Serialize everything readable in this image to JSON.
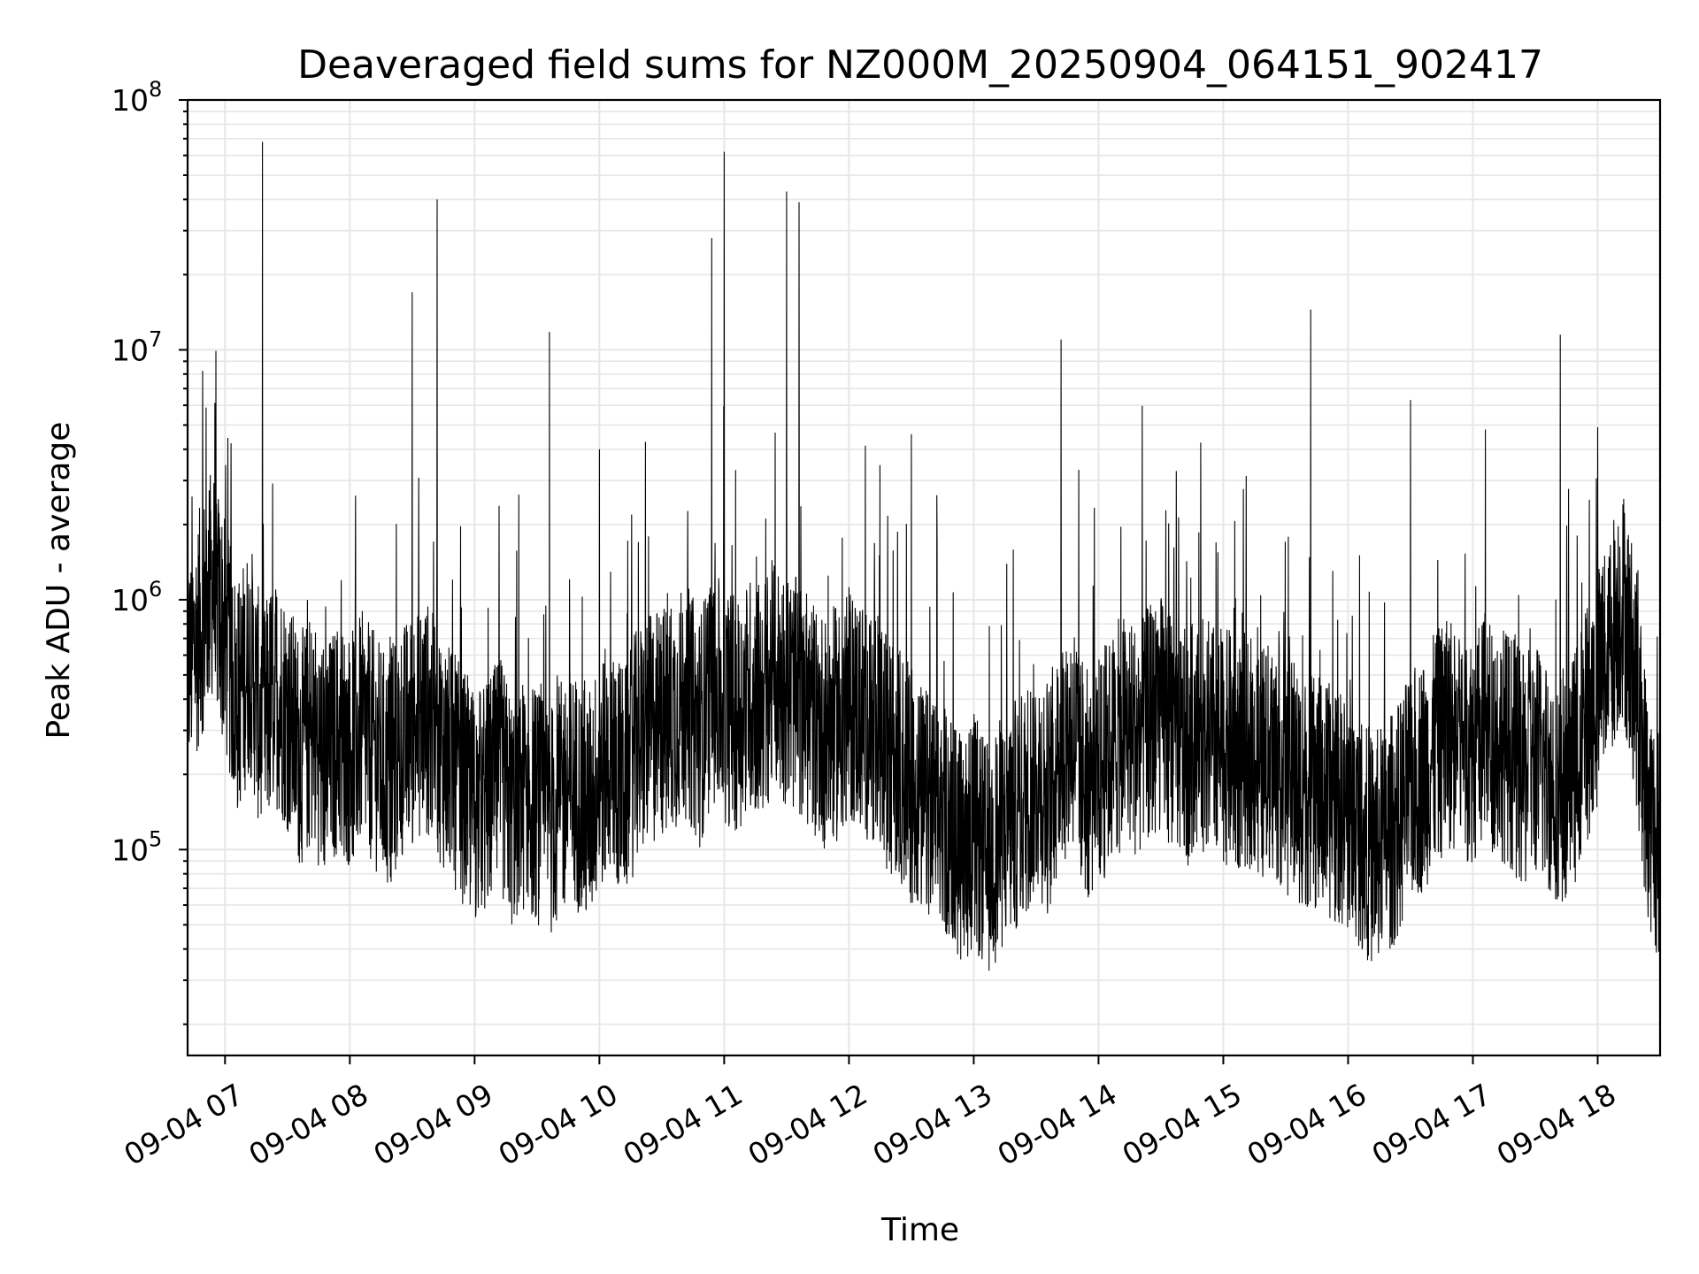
{
  "chart_data": {
    "type": "line",
    "title": "Deaveraged field sums for NZ000M_20250904_064151_902417",
    "xlabel": "Time",
    "ylabel": "Peak ADU - average",
    "y_scale": "log",
    "ylim": [
      15000,
      100000000
    ],
    "xlim": [
      "09-04 06:42",
      "09-04 18:30"
    ],
    "grid": true,
    "line_color": "#000000",
    "grid_color": "#e6e6e6",
    "x_ticks": [
      "09-04 07",
      "09-04 08",
      "09-04 09",
      "09-04 10",
      "09-04 11",
      "09-04 12",
      "09-04 13",
      "09-04 14",
      "09-04 15",
      "09-04 16",
      "09-04 17",
      "09-04 18"
    ],
    "y_ticks": [
      {
        "value": 100000,
        "base": "10",
        "exp": "5"
      },
      {
        "value": 1000000,
        "base": "10",
        "exp": "6"
      },
      {
        "value": 10000000,
        "base": "10",
        "exp": "7"
      },
      {
        "value": 100000000,
        "base": "10",
        "exp": "8"
      }
    ],
    "series": [
      {
        "x": [
          "09-04 06:42",
          "09-04 06:48",
          "09-04 06:54",
          "09-04 07:00",
          "09-04 07:06",
          "09-04 07:12",
          "09-04 07:18",
          "09-04 07:24",
          "09-04 07:30",
          "09-04 07:36",
          "09-04 07:42",
          "09-04 07:48",
          "09-04 07:54",
          "09-04 08:00",
          "09-04 08:06",
          "09-04 08:12",
          "09-04 08:18",
          "09-04 08:24",
          "09-04 08:30",
          "09-04 08:36",
          "09-04 08:42",
          "09-04 08:48",
          "09-04 08:54",
          "09-04 09:00",
          "09-04 09:06",
          "09-04 09:12",
          "09-04 09:18",
          "09-04 09:24",
          "09-04 09:30",
          "09-04 09:36",
          "09-04 09:42",
          "09-04 09:48",
          "09-04 09:54",
          "09-04 10:00",
          "09-04 10:06",
          "09-04 10:12",
          "09-04 10:18",
          "09-04 10:24",
          "09-04 10:30",
          "09-04 10:36",
          "09-04 10:42",
          "09-04 10:48",
          "09-04 10:54",
          "09-04 11:00",
          "09-04 11:06",
          "09-04 11:12",
          "09-04 11:18",
          "09-04 11:24",
          "09-04 11:30",
          "09-04 11:36",
          "09-04 11:42",
          "09-04 11:48",
          "09-04 11:54",
          "09-04 12:00",
          "09-04 12:06",
          "09-04 12:12",
          "09-04 12:18",
          "09-04 12:24",
          "09-04 12:30",
          "09-04 12:36",
          "09-04 12:42",
          "09-04 12:48",
          "09-04 12:54",
          "09-04 13:00",
          "09-04 13:06",
          "09-04 13:12",
          "09-04 13:18",
          "09-04 13:24",
          "09-04 13:30",
          "09-04 13:36",
          "09-04 13:42",
          "09-04 13:48",
          "09-04 13:54",
          "09-04 14:00",
          "09-04 14:06",
          "09-04 14:12",
          "09-04 14:18",
          "09-04 14:24",
          "09-04 14:30",
          "09-04 14:36",
          "09-04 14:42",
          "09-04 14:48",
          "09-04 14:54",
          "09-04 15:00",
          "09-04 15:06",
          "09-04 15:12",
          "09-04 15:18",
          "09-04 15:24",
          "09-04 15:30",
          "09-04 15:36",
          "09-04 15:42",
          "09-04 15:48",
          "09-04 15:54",
          "09-04 16:00",
          "09-04 16:06",
          "09-04 16:12",
          "09-04 16:18",
          "09-04 16:24",
          "09-04 16:30",
          "09-04 16:36",
          "09-04 16:42",
          "09-04 16:48",
          "09-04 16:54",
          "09-04 17:00",
          "09-04 17:06",
          "09-04 17:12",
          "09-04 17:18",
          "09-04 17:24",
          "09-04 17:30",
          "09-04 17:36",
          "09-04 17:42",
          "09-04 17:48",
          "09-04 17:54",
          "09-04 18:00",
          "09-04 18:06",
          "09-04 18:12",
          "09-04 18:18",
          "09-04 18:24",
          "09-04 18:30"
        ],
        "y": [
          500000,
          800000,
          1200000,
          700000,
          400000,
          600000,
          300000,
          450000,
          350000,
          250000,
          300000,
          220000,
          280000,
          250000,
          300000,
          250000,
          200000,
          260000,
          300000,
          350000,
          280000,
          220000,
          180000,
          150000,
          160000,
          200000,
          140000,
          170000,
          150000,
          130000,
          160000,
          180000,
          140000,
          200000,
          230000,
          180000,
          260000,
          300000,
          320000,
          350000,
          400000,
          300000,
          450000,
          380000,
          350000,
          420000,
          400000,
          500000,
          450000,
          400000,
          350000,
          300000,
          320000,
          380000,
          350000,
          300000,
          250000,
          220000,
          180000,
          150000,
          140000,
          130000,
          100000,
          120000,
          90000,
          110000,
          130000,
          150000,
          200000,
          160000,
          250000,
          300000,
          180000,
          200000,
          250000,
          300000,
          280000,
          320000,
          350000,
          300000,
          250000,
          300000,
          280000,
          260000,
          240000,
          250000,
          220000,
          230000,
          200000,
          180000,
          170000,
          160000,
          150000,
          140000,
          120000,
          100000,
          110000,
          130000,
          180000,
          200000,
          250000,
          300000,
          280000,
          260000,
          300000,
          280000,
          250000,
          200000,
          230000,
          200000,
          180000,
          200000,
          300000,
          450000,
          700000,
          1000000,
          500000,
          150000,
          100000
        ],
        "spikes": [
          {
            "x": "09-04 07:18",
            "y": 68000000
          },
          {
            "x": "09-04 08:42",
            "y": 40000000
          },
          {
            "x": "09-04 08:30",
            "y": 17000000
          },
          {
            "x": "09-04 09:36",
            "y": 11800000
          },
          {
            "x": "09-04 10:00",
            "y": 4000000
          },
          {
            "x": "09-04 10:54",
            "y": 28000000
          },
          {
            "x": "09-04 11:00",
            "y": 62000000
          },
          {
            "x": "09-04 11:30",
            "y": 43000000
          },
          {
            "x": "09-04 11:36",
            "y": 39000000
          },
          {
            "x": "09-04 12:30",
            "y": 4600000
          },
          {
            "x": "09-04 13:42",
            "y": 11000000
          },
          {
            "x": "09-04 15:42",
            "y": 14500000
          },
          {
            "x": "09-04 16:30",
            "y": 6300000
          },
          {
            "x": "09-04 17:42",
            "y": 11500000
          },
          {
            "x": "09-04 17:06",
            "y": 4800000
          },
          {
            "x": "09-04 18:00",
            "y": 4900000
          }
        ]
      }
    ]
  }
}
